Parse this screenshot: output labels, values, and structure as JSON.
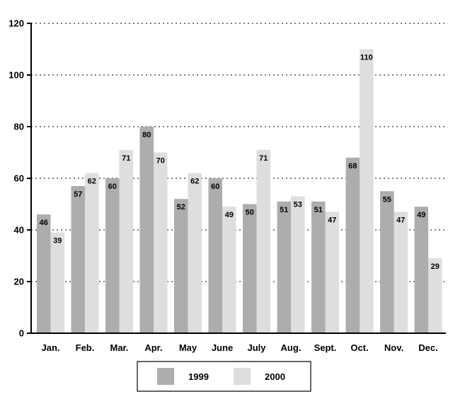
{
  "chart_data": {
    "type": "bar",
    "categories": [
      "Jan.",
      "Feb.",
      "Mar.",
      "Apr.",
      "May",
      "June",
      "July",
      "Aug.",
      "Sept.",
      "Oct.",
      "Nov.",
      "Dec."
    ],
    "series": [
      {
        "name": "1999",
        "color": "#adadad",
        "values": [
          46,
          57,
          60,
          80,
          52,
          60,
          50,
          51,
          51,
          68,
          55,
          49
        ]
      },
      {
        "name": "2000",
        "color": "#dedede",
        "values": [
          39,
          62,
          71,
          70,
          62,
          49,
          71,
          53,
          47,
          110,
          47,
          29
        ]
      }
    ],
    "ylim": [
      0,
      120
    ],
    "yticks": [
      0,
      20,
      40,
      60,
      80,
      100,
      120
    ],
    "grid": true,
    "grid_style": "dotted",
    "legend_position": "bottom-center",
    "data_labels": true
  }
}
